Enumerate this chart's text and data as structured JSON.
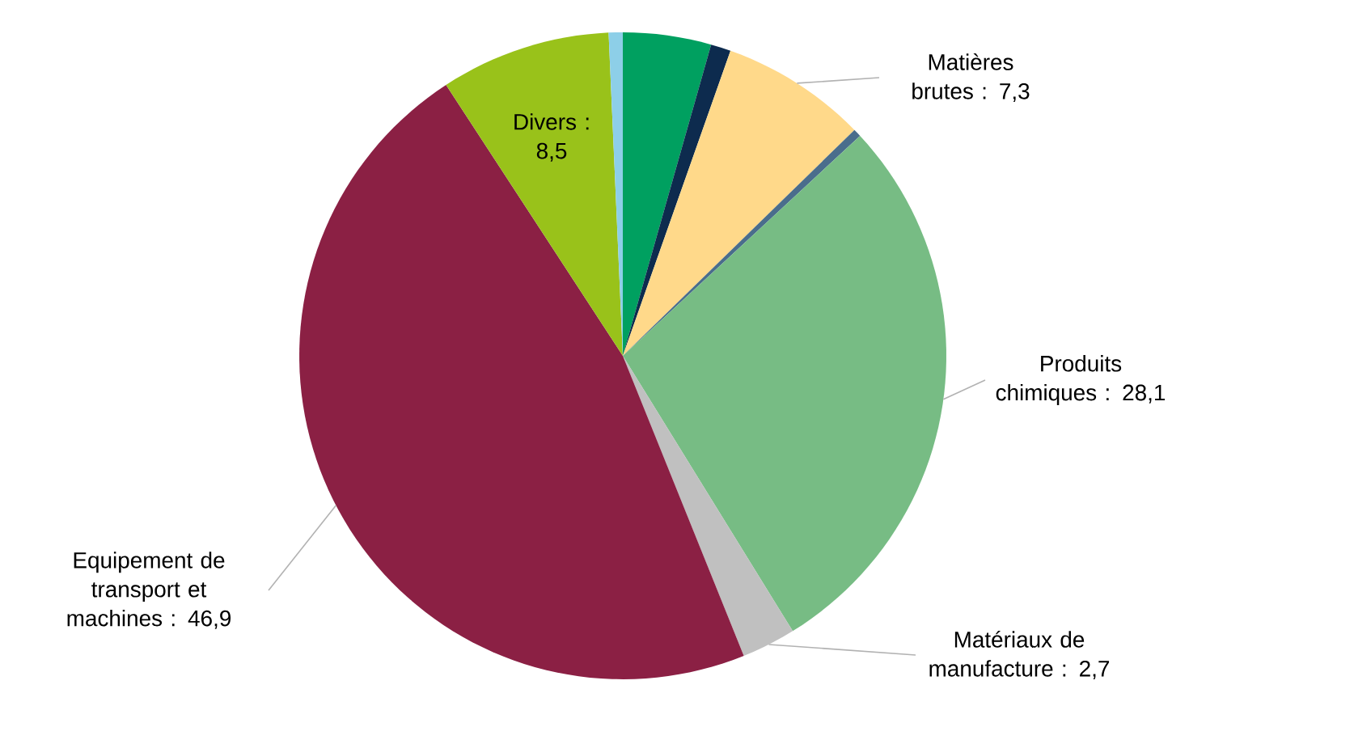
{
  "chart_data": {
    "type": "pie",
    "categories": [
      null,
      null,
      "Matières brutes",
      null,
      "Produits chimiques",
      "Matériaux de manufacture",
      "Equipement de transport et machines",
      "Divers",
      null
    ],
    "values": [
      4.4,
      1.0,
      7.3,
      0.4,
      28.1,
      2.7,
      46.9,
      8.5,
      0.7
    ],
    "value_labels": [
      null,
      null,
      ": 7,3",
      null,
      ": 28,1",
      ": 2,7",
      ": 46,9",
      ": 8,5",
      null
    ],
    "colors": [
      "#00a060",
      "#0d2b4e",
      "#ffd98a",
      "#4a6d8c",
      "#77bc84",
      "#c0c0c0",
      "#8b2044",
      "#99c21a",
      "#8dcfe8"
    ]
  }
}
